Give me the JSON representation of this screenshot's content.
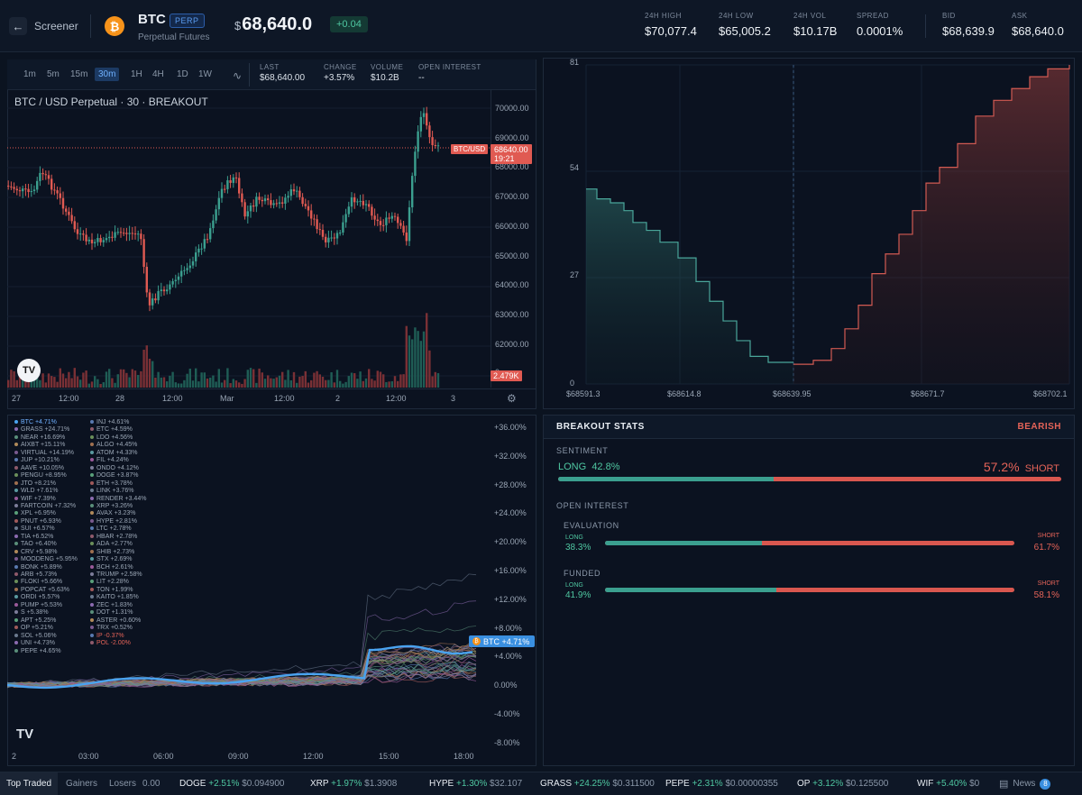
{
  "header": {
    "back_label": "Screener",
    "symbol": "BTC",
    "badge": "PERP",
    "subtitle": "Perpetual Futures",
    "currency": "$",
    "price": "68,640.0",
    "change": "+0.04",
    "stats": [
      {
        "label": "24H HIGH",
        "value": "$70,077.4"
      },
      {
        "label": "24H LOW",
        "value": "$65,005.2"
      },
      {
        "label": "24H VOL",
        "value": "$10.17B"
      },
      {
        "label": "SPREAD",
        "value": "0.0001%"
      },
      {
        "label": "BID",
        "value": "$68,639.9"
      },
      {
        "label": "ASK",
        "value": "$68,640.0"
      }
    ]
  },
  "chart": {
    "timeframes": [
      "1m",
      "5m",
      "15m",
      "30m",
      "1H",
      "4H",
      "1D",
      "1W"
    ],
    "active_tf": "30m",
    "stats": [
      {
        "label": "LAST",
        "value": "$68,640.00"
      },
      {
        "label": "CHANGE",
        "value": "+3.57%"
      },
      {
        "label": "VOLUME",
        "value": "$10.2B"
      },
      {
        "label": "OPEN INTEREST",
        "value": "--"
      }
    ],
    "title": "BTC / USD Perpetual · 30 · BREAKOUT",
    "price_tag": "68640.00",
    "time_tag": "19:21",
    "pair_tag": "BTC/USD",
    "vol_tag": "2.479K",
    "y_labels": [
      "70000.00",
      "69000.00",
      "68000.00",
      "67000.00",
      "66000.00",
      "65000.00",
      "64000.00",
      "63000.00",
      "62000.00",
      "0"
    ],
    "x_labels": [
      "27",
      "12:00",
      "28",
      "12:00",
      "Mar",
      "12:00",
      "2",
      "12:00",
      "3"
    ]
  },
  "depth": {
    "y_labels": [
      "81",
      "54",
      "27",
      "0"
    ],
    "x_labels": [
      "$68591.3",
      "$68614.8",
      "$68639.95",
      "$68671.7",
      "$68702.1"
    ]
  },
  "perf": {
    "btc_tag": "BTC +4.71%",
    "y_labels": [
      "+36.00%",
      "+32.00%",
      "+28.00%",
      "+24.00%",
      "+20.00%",
      "+16.00%",
      "+12.00%",
      "+8.00%",
      "+4.00%",
      "0.00%",
      "-4.00%",
      "-8.00%"
    ],
    "x_labels": [
      "2",
      "03:00",
      "06:00",
      "09:00",
      "12:00",
      "15:00",
      "18:00"
    ],
    "col1": [
      "BTC +4.71%",
      "GRASS +24.71%",
      "NEAR +16.69%",
      "AIXBT +15.11%",
      "VIRTUAL +14.19%",
      "JUP +10.21%",
      "AAVE +10.05%",
      "PENGU +8.95%",
      "JTO +8.21%",
      "WLD +7.61%",
      "WIF +7.39%",
      "FARTCOIN +7.32%",
      "XPL +6.95%",
      "PNUT +6.93%",
      "SUI +6.57%",
      "TIA +6.52%",
      "TAO +6.40%",
      "CRV +5.98%",
      "MOODENG +5.95%",
      "BONK +5.89%",
      "ARB +5.73%",
      "FLOKI +5.66%",
      "POPCAT +5.63%",
      "ORDI +5.57%",
      "PUMP +5.53%",
      "S +5.38%",
      "APT +5.25%",
      "OP +5.21%",
      "SOL +5.06%",
      "UNI +4.73%",
      "PEPE +4.65%"
    ],
    "col2": [
      "INJ +4.61%",
      "ETC +4.59%",
      "LDO +4.56%",
      "ALGO +4.45%",
      "ATOM +4.33%",
      "FIL +4.24%",
      "ONDO +4.12%",
      "DOGE +3.87%",
      "ETH +3.78%",
      "LINK +3.76%",
      "RENDER +3.44%",
      "XRP +3.26%",
      "AVAX +3.23%",
      "HYPE +2.81%",
      "LTC +2.78%",
      "HBAR +2.78%",
      "ADA +2.77%",
      "SHIB +2.73%",
      "STX +2.69%",
      "BCH +2.61%",
      "TRUMP +2.58%",
      "LIT +2.28%",
      "TON +1.99%",
      "KAITO +1.85%",
      "ZEC +1.83%",
      "DOT +1.31%",
      "ASTER +0.60%",
      "TRX +0.52%",
      "IP -0.37%",
      "POL -2.00%"
    ]
  },
  "breakout": {
    "title": "BREAKOUT STATS",
    "bias": "BEARISH",
    "sentiment_label": "SENTIMENT",
    "long_label": "LONG",
    "short_label": "SHORT",
    "long_pct": "42.8%",
    "short_pct": "57.2%",
    "long_frac": 0.428,
    "oi_label": "OPEN INTEREST",
    "evaluation_label": "EVALUATION",
    "eval_long": "38.3%",
    "eval_short": "61.7%",
    "eval_frac": 0.383,
    "funded_label": "FUNDED",
    "funded_long": "41.9%",
    "funded_short": "58.1%",
    "funded_frac": 0.419
  },
  "footer": {
    "tabs": [
      "Top Traded",
      "Gainers",
      "Losers"
    ],
    "leading": "0.00",
    "tickers": [
      {
        "sym": "DOGE",
        "chg": "+2.51%",
        "price": "$0.094900"
      },
      {
        "sym": "XRP",
        "chg": "+1.97%",
        "price": "$1.3908"
      },
      {
        "sym": "HYPE",
        "chg": "+1.30%",
        "price": "$32.107"
      },
      {
        "sym": "GRASS",
        "chg": "+24.25%",
        "price": "$0.311500"
      },
      {
        "sym": "PEPE",
        "chg": "+2.31%",
        "price": "$0.00000355"
      },
      {
        "sym": "OP",
        "chg": "+3.12%",
        "price": "$0.125500"
      },
      {
        "sym": "WIF",
        "chg": "+5.40%",
        "price": "$0"
      }
    ],
    "news_label": "News",
    "news_count": "8"
  },
  "colors": {
    "up": "#4fc7a1",
    "down": "#e05a52",
    "accent": "#4aa3f0"
  }
}
